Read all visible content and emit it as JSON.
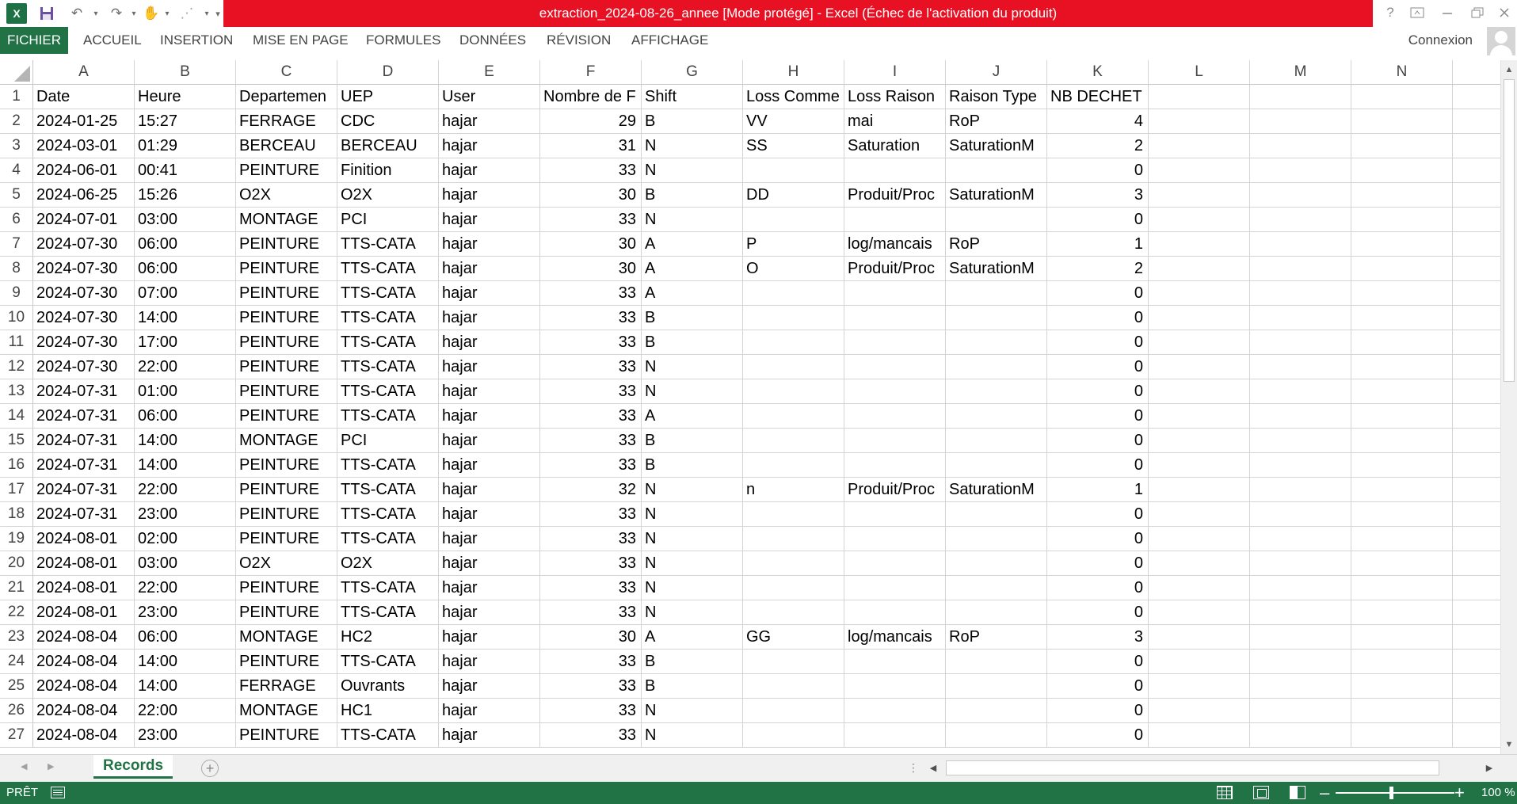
{
  "window": {
    "title": "extraction_2024-08-26_annee  [Mode protégé] -  Excel (Échec de l'activation du produit)",
    "logo_text": "X",
    "help_label": "?",
    "colors": {
      "title_bar": "#e81123",
      "accent": "#217346"
    }
  },
  "quick_access": [
    {
      "icon": "save-icon"
    },
    {
      "icon": "undo-icon"
    },
    {
      "icon": "redo-icon"
    },
    {
      "icon": "touch-mode-icon"
    },
    {
      "icon": "chart-icon"
    },
    {
      "icon": "customize-icon"
    }
  ],
  "ribbon": {
    "tabs": [
      "FICHIER",
      "ACCUEIL",
      "INSERTION",
      "MISE EN PAGE",
      "FORMULES",
      "DONNÉES",
      "RÉVISION",
      "AFFICHAGE"
    ],
    "connexion": "Connexion"
  },
  "sheet": {
    "columns": [
      "A",
      "B",
      "C",
      "D",
      "E",
      "F",
      "G",
      "H",
      "I",
      "J",
      "K",
      "L",
      "M",
      "N"
    ],
    "row_numbers": [
      "1",
      "2",
      "3",
      "4",
      "5",
      "6",
      "7",
      "8",
      "9",
      "10",
      "11",
      "12",
      "13",
      "14",
      "15",
      "16",
      "17",
      "18",
      "19",
      "20",
      "21",
      "22",
      "23",
      "24",
      "25",
      "26",
      "27"
    ],
    "headers": [
      "Date",
      "Heure",
      "Departemen",
      "UEP",
      "User",
      "Nombre de F",
      "Shift",
      "Loss Comme",
      "Loss Raison",
      "Raison Type",
      "NB DECHET"
    ],
    "rows": [
      [
        "2024-01-25",
        "15:27",
        "FERRAGE",
        "CDC",
        "hajar",
        "29",
        "B",
        "VV",
        "mai",
        "RoP",
        "4"
      ],
      [
        "2024-03-01",
        "01:29",
        "BERCEAU",
        "BERCEAU",
        "hajar",
        "31",
        "N",
        "SS",
        "Saturation",
        "SaturationM",
        "2"
      ],
      [
        "2024-06-01",
        "00:41",
        "PEINTURE",
        "Finition",
        "hajar",
        "33",
        "N",
        "",
        "",
        "",
        "0"
      ],
      [
        "2024-06-25",
        "15:26",
        "O2X",
        "O2X",
        "hajar",
        "30",
        "B",
        "DD",
        "Produit/Proc",
        "SaturationM",
        "3"
      ],
      [
        "2024-07-01",
        "03:00",
        "MONTAGE",
        "PCI",
        "hajar",
        "33",
        "N",
        "",
        "",
        "",
        "0"
      ],
      [
        "2024-07-30",
        "06:00",
        "PEINTURE",
        "TTS-CATA",
        "hajar",
        "30",
        "A",
        "P",
        "log/mancais",
        "RoP",
        "1"
      ],
      [
        "2024-07-30",
        "06:00",
        "PEINTURE",
        "TTS-CATA",
        "hajar",
        "30",
        "A",
        "O",
        "Produit/Proc",
        "SaturationM",
        "2"
      ],
      [
        "2024-07-30",
        "07:00",
        "PEINTURE",
        "TTS-CATA",
        "hajar",
        "33",
        "A",
        "",
        "",
        "",
        "0"
      ],
      [
        "2024-07-30",
        "14:00",
        "PEINTURE",
        "TTS-CATA",
        "hajar",
        "33",
        "B",
        "",
        "",
        "",
        "0"
      ],
      [
        "2024-07-30",
        "17:00",
        "PEINTURE",
        "TTS-CATA",
        "hajar",
        "33",
        "B",
        "",
        "",
        "",
        "0"
      ],
      [
        "2024-07-30",
        "22:00",
        "PEINTURE",
        "TTS-CATA",
        "hajar",
        "33",
        "N",
        "",
        "",
        "",
        "0"
      ],
      [
        "2024-07-31",
        "01:00",
        "PEINTURE",
        "TTS-CATA",
        "hajar",
        "33",
        "N",
        "",
        "",
        "",
        "0"
      ],
      [
        "2024-07-31",
        "06:00",
        "PEINTURE",
        "TTS-CATA",
        "hajar",
        "33",
        "A",
        "",
        "",
        "",
        "0"
      ],
      [
        "2024-07-31",
        "14:00",
        "MONTAGE",
        "PCI",
        "hajar",
        "33",
        "B",
        "",
        "",
        "",
        "0"
      ],
      [
        "2024-07-31",
        "14:00",
        "PEINTURE",
        "TTS-CATA",
        "hajar",
        "33",
        "B",
        "",
        "",
        "",
        "0"
      ],
      [
        "2024-07-31",
        "22:00",
        "PEINTURE",
        "TTS-CATA",
        "hajar",
        "32",
        "N",
        "n",
        "Produit/Proc",
        "SaturationM",
        "1"
      ],
      [
        "2024-07-31",
        "23:00",
        "PEINTURE",
        "TTS-CATA",
        "hajar",
        "33",
        "N",
        "",
        "",
        "",
        "0"
      ],
      [
        "2024-08-01",
        "02:00",
        "PEINTURE",
        "TTS-CATA",
        "hajar",
        "33",
        "N",
        "",
        "",
        "",
        "0"
      ],
      [
        "2024-08-01",
        "03:00",
        "O2X",
        "O2X",
        "hajar",
        "33",
        "N",
        "",
        "",
        "",
        "0"
      ],
      [
        "2024-08-01",
        "22:00",
        "PEINTURE",
        "TTS-CATA",
        "hajar",
        "33",
        "N",
        "",
        "",
        "",
        "0"
      ],
      [
        "2024-08-01",
        "23:00",
        "PEINTURE",
        "TTS-CATA",
        "hajar",
        "33",
        "N",
        "",
        "",
        "",
        "0"
      ],
      [
        "2024-08-04",
        "06:00",
        "MONTAGE",
        "HC2",
        "hajar",
        "30",
        "A",
        "GG",
        "log/mancais",
        "RoP",
        "3"
      ],
      [
        "2024-08-04",
        "14:00",
        "PEINTURE",
        "TTS-CATA",
        "hajar",
        "33",
        "B",
        "",
        "",
        "",
        "0"
      ],
      [
        "2024-08-04",
        "14:00",
        "FERRAGE",
        "Ouvrants",
        "hajar",
        "33",
        "B",
        "",
        "",
        "",
        "0"
      ],
      [
        "2024-08-04",
        "22:00",
        "MONTAGE",
        "HC1",
        "hajar",
        "33",
        "N",
        "",
        "",
        "",
        "0"
      ],
      [
        "2024-08-04",
        "23:00",
        "PEINTURE",
        "TTS-CATA",
        "hajar",
        "33",
        "N",
        "",
        "",
        "",
        "0"
      ]
    ]
  },
  "sheet_tabs": {
    "active": "Records",
    "add_label": "+"
  },
  "statusbar": {
    "ready": "PRÊT",
    "zoom": "100 %",
    "zoom_percent": 100
  }
}
